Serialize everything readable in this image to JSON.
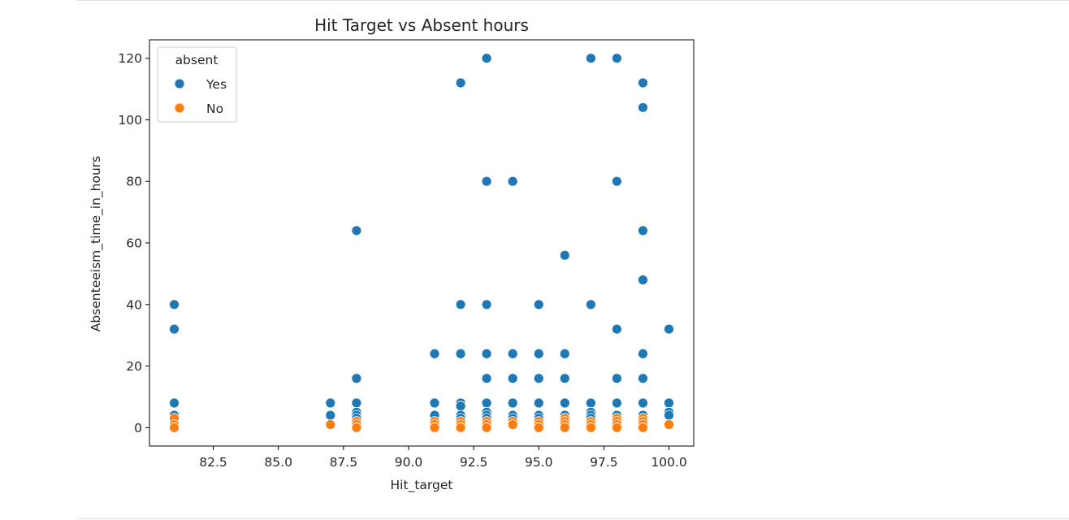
{
  "chart_data": {
    "type": "scatter",
    "title": "Hit Target vs Absent hours",
    "xlabel": "Hit_target",
    "ylabel": "Absenteeism_time_in_hours",
    "xlim": [
      80.05,
      100.95
    ],
    "ylim": [
      -6,
      126
    ],
    "x_ticks": [
      82.5,
      85.0,
      87.5,
      90.0,
      92.5,
      95.0,
      97.5,
      100.0
    ],
    "x_tick_labels": [
      "82.5",
      "85.0",
      "87.5",
      "90.0",
      "92.5",
      "95.0",
      "97.5",
      "100.0"
    ],
    "y_ticks": [
      0,
      20,
      40,
      60,
      80,
      100,
      120
    ],
    "y_tick_labels": [
      "0",
      "20",
      "40",
      "60",
      "80",
      "100",
      "120"
    ],
    "grid": false,
    "legend": {
      "title": "absent",
      "placement": "top-left",
      "entries": [
        {
          "label": "Yes",
          "color": "#1f77b4"
        },
        {
          "label": "No",
          "color": "#ff7f0e"
        }
      ]
    },
    "series": [
      {
        "name": "Yes",
        "color": "#1f77b4",
        "points": [
          [
            81,
            40
          ],
          [
            81,
            32
          ],
          [
            81,
            8
          ],
          [
            81,
            4
          ],
          [
            81,
            3
          ],
          [
            87,
            8
          ],
          [
            87,
            4
          ],
          [
            88,
            64
          ],
          [
            88,
            16
          ],
          [
            88,
            8
          ],
          [
            88,
            5
          ],
          [
            88,
            4
          ],
          [
            88,
            3
          ],
          [
            91,
            24
          ],
          [
            91,
            8
          ],
          [
            91,
            4
          ],
          [
            92,
            112
          ],
          [
            92,
            40
          ],
          [
            92,
            24
          ],
          [
            92,
            8
          ],
          [
            92,
            7
          ],
          [
            92,
            4
          ],
          [
            92,
            3
          ],
          [
            93,
            120
          ],
          [
            93,
            80
          ],
          [
            93,
            40
          ],
          [
            93,
            24
          ],
          [
            93,
            16
          ],
          [
            93,
            8
          ],
          [
            93,
            5
          ],
          [
            93,
            4
          ],
          [
            93,
            3
          ],
          [
            94,
            80
          ],
          [
            94,
            24
          ],
          [
            94,
            16
          ],
          [
            94,
            8
          ],
          [
            94,
            4
          ],
          [
            94,
            3
          ],
          [
            95,
            40
          ],
          [
            95,
            24
          ],
          [
            95,
            16
          ],
          [
            95,
            8
          ],
          [
            95,
            4
          ],
          [
            95,
            3
          ],
          [
            96,
            56
          ],
          [
            96,
            24
          ],
          [
            96,
            16
          ],
          [
            96,
            8
          ],
          [
            96,
            4
          ],
          [
            96,
            3
          ],
          [
            97,
            120
          ],
          [
            97,
            40
          ],
          [
            97,
            8
          ],
          [
            97,
            5
          ],
          [
            97,
            4
          ],
          [
            97,
            3
          ],
          [
            98,
            120
          ],
          [
            98,
            80
          ],
          [
            98,
            32
          ],
          [
            98,
            16
          ],
          [
            98,
            8
          ],
          [
            98,
            4
          ],
          [
            98,
            3
          ],
          [
            99,
            112
          ],
          [
            99,
            104
          ],
          [
            99,
            64
          ],
          [
            99,
            48
          ],
          [
            99,
            24
          ],
          [
            99,
            16
          ],
          [
            99,
            8
          ],
          [
            99,
            4
          ],
          [
            99,
            3
          ],
          [
            100,
            32
          ],
          [
            100,
            8
          ],
          [
            100,
            5
          ],
          [
            100,
            4
          ]
        ]
      },
      {
        "name": "No",
        "color": "#ff7f0e",
        "points": [
          [
            81,
            3
          ],
          [
            81,
            1
          ],
          [
            81,
            0
          ],
          [
            87,
            1
          ],
          [
            88,
            2
          ],
          [
            88,
            1
          ],
          [
            88,
            0
          ],
          [
            91,
            2
          ],
          [
            91,
            1
          ],
          [
            91,
            0
          ],
          [
            92,
            2
          ],
          [
            92,
            1
          ],
          [
            92,
            0
          ],
          [
            93,
            2
          ],
          [
            93,
            1
          ],
          [
            93,
            0
          ],
          [
            94,
            2
          ],
          [
            94,
            1
          ],
          [
            95,
            2
          ],
          [
            95,
            1
          ],
          [
            95,
            0
          ],
          [
            96,
            3
          ],
          [
            96,
            2
          ],
          [
            96,
            1
          ],
          [
            96,
            0
          ],
          [
            97,
            2
          ],
          [
            97,
            1
          ],
          [
            97,
            0
          ],
          [
            98,
            3
          ],
          [
            98,
            2
          ],
          [
            98,
            1
          ],
          [
            98,
            0
          ],
          [
            99,
            3
          ],
          [
            99,
            2
          ],
          [
            99,
            1
          ],
          [
            99,
            0
          ],
          [
            100,
            1
          ]
        ]
      }
    ]
  }
}
